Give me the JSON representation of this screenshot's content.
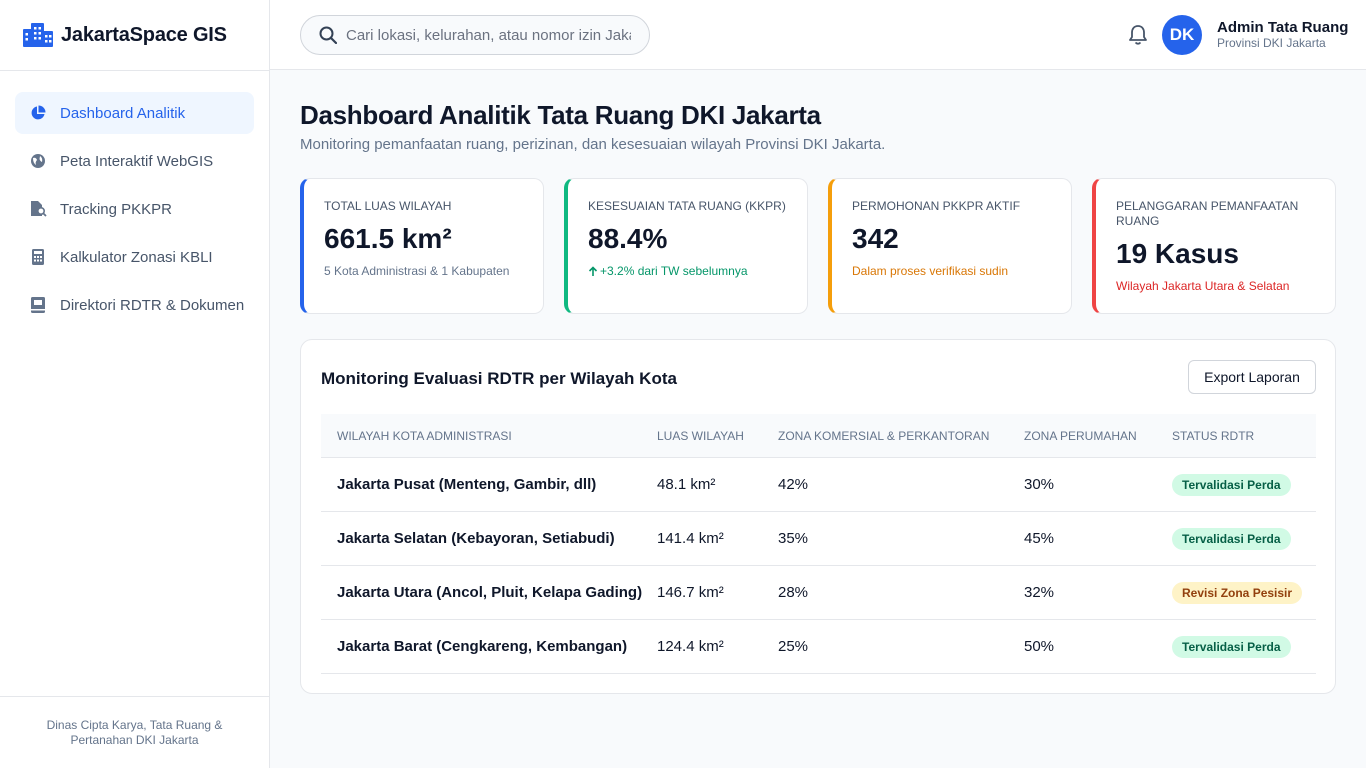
{
  "app": {
    "name": "JakartaSpace GIS"
  },
  "sidebar": {
    "items": [
      {
        "label": "Dashboard Analitik",
        "icon": "pie-chart-icon",
        "active": true
      },
      {
        "label": "Peta Interaktif WebGIS",
        "icon": "globe-icon"
      },
      {
        "label": "Tracking PKKPR",
        "icon": "file-search-icon"
      },
      {
        "label": "Kalkulator Zonasi KBLI",
        "icon": "calculator-icon"
      },
      {
        "label": "Direktori RDTR & Dokumen",
        "icon": "book-icon"
      }
    ],
    "footer": "Dinas Cipta Karya, Tata Ruang & Pertanahan DKI Jakarta"
  },
  "header": {
    "search_placeholder": "Cari lokasi, kelurahan, atau nomor izin Jakarta",
    "user_initials": "DK",
    "user_name": "Admin Tata Ruang",
    "user_role": "Provinsi DKI Jakarta"
  },
  "main": {
    "title": "Dashboard Analitik Tata Ruang DKI Jakarta",
    "subtitle": "Monitoring pemanfaatan ruang, perizinan, dan kesesuaian wilayah Provinsi DKI Jakarta.",
    "cards": [
      {
        "label": "Total Luas Wilayah",
        "value": "661.5 km²",
        "note": "5 Kota Administrasi & 1 Kabupaten",
        "accent": "#2563eb",
        "note_color": "#64748b"
      },
      {
        "label": "Kesesuaian Tata Ruang (KKPR)",
        "value": "88.4%",
        "note": "+3.2% dari TW sebelumnya",
        "accent": "#10b981",
        "note_color": "#059669",
        "note_icon": "arrow-up-icon"
      },
      {
        "label": "Permohonan PKKPR Aktif",
        "value": "342",
        "note": "Dalam proses verifikasi sudin",
        "accent": "#f59e0b",
        "note_color": "#d97706"
      },
      {
        "label": "Pelanggaran Pemanfaatan Ruang",
        "value": "19 Kasus",
        "note": "Wilayah Jakarta Utara & Selatan",
        "accent": "#ef4444",
        "note_color": "#dc2626"
      }
    ],
    "panel": {
      "title": "Monitoring Evaluasi RDTR per Wilayah Kota",
      "export_label": "Export Laporan",
      "columns": [
        "Wilayah Kota Administrasi",
        "Luas Wilayah",
        "Zona Komersial & Perkantoran",
        "Zona Perumahan",
        "Status RDTR"
      ],
      "rows": [
        {
          "wilayah": "Jakarta Pusat (Menteng, Gambir, dll)",
          "luas": "48.1 km²",
          "komersial": "42%",
          "perumahan": "30%",
          "status": "Tervalidasi Perda",
          "status_type": "ok"
        },
        {
          "wilayah": "Jakarta Selatan (Kebayoran, Setiabudi)",
          "luas": "141.4 km²",
          "komersial": "35%",
          "perumahan": "45%",
          "status": "Tervalidasi Perda",
          "status_type": "ok"
        },
        {
          "wilayah": "Jakarta Utara (Ancol, Pluit, Kelapa Gading)",
          "luas": "146.7 km²",
          "komersial": "28%",
          "perumahan": "32%",
          "status": "Revisi Zona Pesisir",
          "status_type": "warn"
        },
        {
          "wilayah": "Jakarta Barat (Cengkareng, Kembangan)",
          "luas": "124.4 km²",
          "komersial": "25%",
          "perumahan": "50%",
          "status": "Tervalidasi Perda",
          "status_type": "ok"
        }
      ]
    }
  },
  "colors": {
    "primary": "#2563eb",
    "success": "#10b981",
    "warning": "#f59e0b",
    "danger": "#ef4444"
  }
}
